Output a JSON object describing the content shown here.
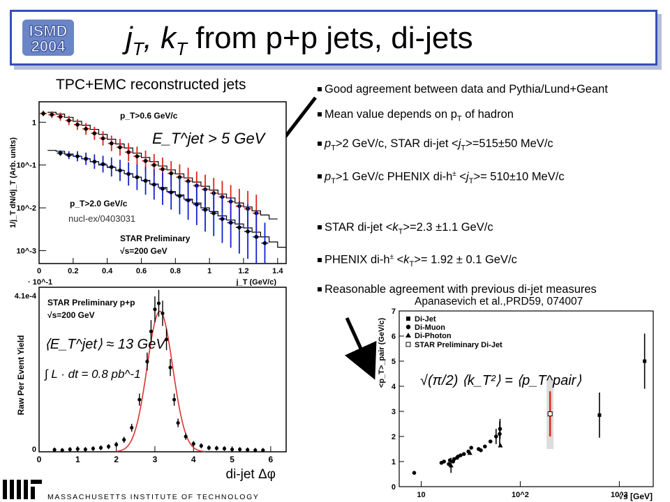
{
  "slide": {
    "title_parts": [
      "j",
      "T",
      ", k",
      "T",
      " from p+p jets, di-jets"
    ],
    "logo_text": [
      "ISMD",
      "2004"
    ],
    "subtitle": "TPC+EMC reconstructed jets",
    "bullets_top": [
      {
        "parts": [
          "Good agreement between data and Pythia/Lund+Geant"
        ]
      },
      {
        "parts": [
          "Mean value depends on p",
          "T",
          " of hadron"
        ]
      },
      {
        "parts": [
          "p",
          "T",
          ">2 GeV/c, STAR di-jet <",
          "j",
          "T",
          ">=515±50 MeV/c"
        ]
      },
      {
        "parts": [
          "p",
          "T",
          ">1 GeV/c PHENIX di-h",
          "±",
          " <",
          "j",
          "T",
          ">= 510±10 MeV/c"
        ]
      }
    ],
    "bullets_bottom": [
      {
        "parts": [
          "STAR di-jet <",
          "k",
          "T",
          ">=2.3 ±1.1 GeV/c"
        ]
      },
      {
        "parts": [
          "PHENIX di-h",
          "±",
          " <",
          "k",
          "T",
          ">= 1.92 ± 0.1 GeV/c"
        ]
      },
      {
        "parts": [
          "Reasonable agreement with previous di-jet measures"
        ]
      }
    ],
    "reference": "Apanasevich et al.,PRD59, 074007",
    "footer": "MASSACHUSETTS INSTITUTE OF TECHNOLOGY",
    "colors": {
      "title_border": "#3550b8",
      "data_red": "#e0201a",
      "data_blue": "#1020d0",
      "fit_red": "#e03030"
    }
  },
  "chart_data": [
    {
      "type": "scatter",
      "ylabel": "1/j_T dN/dj_T (Arb. units)",
      "xlabel": "j_T (GeV/c)",
      "ylog": true,
      "xlim": [
        0,
        1.45
      ],
      "ylim": [
        0.0005,
        3
      ],
      "x_ticks": [
        "0",
        "0.2",
        "0.4",
        "0.6",
        "0.8",
        "1",
        "1.2",
        "1.4"
      ],
      "y_ticks": [
        "1",
        "10^-1",
        "10^-2",
        "10^-3"
      ],
      "corner_label": "· 10^-1",
      "annotations": [
        "p_T>0.6 GeV/c",
        "p_T>2.0 GeV/c",
        "STAR Preliminary",
        "√s=200 GeV",
        "nucl-ex/0403031"
      ],
      "formula": "E_T^jet > 5 GeV",
      "series": [
        {
          "name": "p_T>0.6 GeV/c",
          "color": "#e0201a",
          "x": [
            0.025,
            0.075,
            0.125,
            0.175,
            0.225,
            0.275,
            0.325,
            0.375,
            0.425,
            0.475,
            0.525,
            0.575,
            0.625,
            0.675,
            0.725,
            0.775,
            0.825,
            0.875,
            0.925,
            0.975,
            1.025,
            1.075,
            1.125,
            1.175,
            1.225,
            1.275
          ],
          "y": [
            1.6,
            1.5,
            1.35,
            1.1,
            0.88,
            0.7,
            0.55,
            0.42,
            0.32,
            0.26,
            0.2,
            0.16,
            0.125,
            0.1,
            0.08,
            0.064,
            0.052,
            0.042,
            0.033,
            0.027,
            0.022,
            0.018,
            0.014,
            0.011,
            0.0095,
            0.0075
          ]
        },
        {
          "name": "p_T>2.0 GeV/c",
          "color": "#1020d0",
          "x": [
            0.125,
            0.175,
            0.225,
            0.275,
            0.325,
            0.375,
            0.425,
            0.475,
            0.525,
            0.575,
            0.625,
            0.675,
            0.725,
            0.775,
            0.825,
            0.875,
            0.925,
            0.975,
            1.025,
            1.075,
            1.125,
            1.175,
            1.225,
            1.275,
            1.325
          ],
          "y": [
            0.19,
            0.17,
            0.16,
            0.14,
            0.12,
            0.105,
            0.09,
            0.075,
            0.062,
            0.052,
            0.043,
            0.035,
            0.028,
            0.023,
            0.019,
            0.015,
            0.012,
            0.009,
            0.0075,
            0.0055,
            0.0045,
            0.0035,
            0.0028,
            0.0021,
            0.0015
          ]
        }
      ],
      "pythia": [
        {
          "edges": [
            0.05,
            0.1,
            0.15,
            0.2,
            0.25,
            0.3,
            0.35,
            0.4,
            0.45,
            0.5,
            0.55,
            0.6,
            0.65,
            0.7,
            0.75,
            0.8,
            0.85,
            0.9,
            0.95,
            1.0,
            1.05,
            1.1,
            1.15,
            1.2,
            1.25,
            1.3,
            1.35,
            1.4
          ],
          "values": [
            1.7,
            1.55,
            1.3,
            1.05,
            0.85,
            0.68,
            0.52,
            0.4,
            0.31,
            0.25,
            0.19,
            0.15,
            0.12,
            0.095,
            0.077,
            0.062,
            0.05,
            0.04,
            0.032,
            0.026,
            0.021,
            0.017,
            0.013,
            0.0105,
            0.0085,
            0.0068,
            0.0055
          ]
        },
        {
          "edges": [
            0.05,
            0.1,
            0.15,
            0.2,
            0.25,
            0.3,
            0.35,
            0.4,
            0.45,
            0.5,
            0.55,
            0.6,
            0.65,
            0.7,
            0.75,
            0.8,
            0.85,
            0.9,
            0.95,
            1.0,
            1.05,
            1.1,
            1.15,
            1.2,
            1.25,
            1.3,
            1.35,
            1.4,
            1.45
          ],
          "values": [
            0.22,
            0.21,
            0.18,
            0.16,
            0.14,
            0.12,
            0.1,
            0.088,
            0.075,
            0.063,
            0.052,
            0.044,
            0.036,
            0.03,
            0.024,
            0.02,
            0.016,
            0.013,
            0.01,
            0.0082,
            0.0065,
            0.0052,
            0.0042,
            0.0034,
            0.0027,
            0.0021,
            0.0016,
            0.0012
          ]
        }
      ]
    },
    {
      "type": "scatter",
      "ylabel": "Raw Per Event Yield",
      "xlabel": "di-jet Δφ",
      "xlim": [
        0,
        6.4
      ],
      "ylim": [
        0,
        0.00041
      ],
      "x_ticks": [
        "0",
        "1",
        "2",
        "3",
        "4",
        "5",
        "6"
      ],
      "y_top_label": "4.1e-4",
      "y_zero_label": "0",
      "annotations": [
        "STAR Preliminary p+p",
        "√s=200 GeV"
      ],
      "formulas": [
        "⟨E_T^jet⟩ ≈ 13 GeV",
        "∫ L · dt = 0.8 pb^-1"
      ],
      "series": [
        {
          "name": "di-jet",
          "color": "#000000",
          "x": [
            0.4,
            0.6,
            0.8,
            1.0,
            1.2,
            1.4,
            1.6,
            1.8,
            2.0,
            2.2,
            2.4,
            2.6,
            2.8,
            2.9,
            3.0,
            3.1,
            3.2,
            3.3,
            3.4,
            3.5,
            3.6,
            3.8,
            4.0,
            4.2,
            4.4,
            4.6,
            4.8,
            5.0,
            5.2,
            5.4,
            5.6,
            5.8
          ],
          "y": [
            5e-06,
            4e-06,
            6e-06,
            7e-06,
            6e-06,
            8e-06,
            1e-05,
            1.3e-05,
            1.8e-05,
            3e-05,
            6e-05,
            0.00013,
            0.000225,
            0.0003,
            0.000355,
            0.00037,
            0.000345,
            0.00028,
            0.00021,
            0.00013,
            7.2e-05,
            3.8e-05,
            2e-05,
            1.5e-05,
            1e-05,
            9e-06,
            8e-06,
            6e-06,
            6e-06,
            5e-06,
            4e-06,
            4e-06
          ]
        }
      ],
      "fit": {
        "amplitude": 0.00035,
        "mean": 3.13,
        "sigma": 0.33,
        "color": "#e03030"
      }
    },
    {
      "type": "scatter",
      "ylabel": "<p_T>_pair (GeV/c)",
      "xlabel": "√s [GeV]",
      "xlog": true,
      "xlim": [
        6,
        2200
      ],
      "ylim": [
        0,
        7
      ],
      "y_ticks": [
        "0",
        "1",
        "2",
        "3",
        "4",
        "5",
        "6",
        "7"
      ],
      "x_ticks": [
        "10",
        "10^2",
        "10^3"
      ],
      "formula": "√(π/2) ⟨k_T²⟩ = ⟨p_T^pair⟩",
      "legend_position": "top-left",
      "series": [
        {
          "name": "Di-Jet",
          "marker": "square",
          "x": [
            1800,
            630
          ],
          "y": [
            5.0,
            2.85
          ],
          "err": [
            1.1,
            0.9
          ]
        },
        {
          "name": "Di-Muon",
          "marker": "circle",
          "x": [
            8.5,
            16,
            17,
            19,
            19.5,
            21,
            21.5,
            23,
            23.5,
            25,
            27,
            30,
            32,
            38,
            40,
            44,
            50,
            57,
            62,
            62.5
          ],
          "y": [
            0.55,
            0.95,
            1.0,
            0.9,
            1.05,
            1.0,
            1.1,
            1.15,
            1.2,
            1.25,
            1.3,
            1.4,
            1.55,
            1.5,
            1.45,
            1.6,
            1.8,
            2.0,
            2.1,
            2.3
          ],
          "err": [
            0,
            0,
            0,
            0,
            0,
            0,
            0,
            0,
            0,
            0,
            0,
            0,
            0,
            0,
            0,
            0,
            0,
            0.3,
            0.5,
            0.4
          ]
        },
        {
          "name": "Di-Photon",
          "marker": "triangle",
          "x": [
            20,
            31,
            63
          ],
          "y": [
            0.85,
            1.35,
            1.65
          ],
          "err": [
            0.3,
            0,
            0
          ]
        },
        {
          "name": "STAR  Preliminary  Di-Jet",
          "marker": "open-square",
          "x": [
            200
          ],
          "y": [
            2.9
          ],
          "err": [
            0.9
          ],
          "band": [
            1.5,
            4.3
          ],
          "color": "#e0201a"
        }
      ]
    }
  ]
}
